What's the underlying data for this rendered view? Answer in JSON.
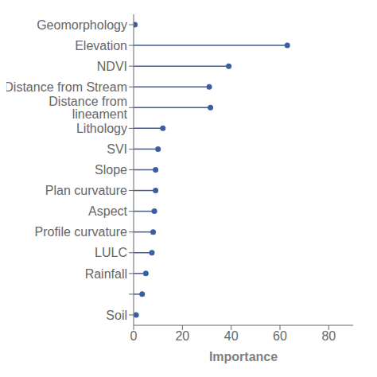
{
  "chart_data": {
    "type": "lollipop",
    "orientation": "horizontal",
    "categories": [
      "Geomorphology",
      "Elevation",
      "NDVI",
      "Distance from Stream",
      "Distance from lineament",
      "Lithology",
      "SVI",
      "Slope",
      "Plan curvature",
      "Aspect",
      "Profile curvature",
      "LULC",
      "Rainfall",
      null,
      "Soil"
    ],
    "values": [
      0.5,
      63.0,
      39.0,
      31.0,
      31.5,
      12.0,
      10.0,
      9.0,
      9.0,
      8.5,
      8.0,
      7.5,
      5.0,
      3.5,
      1.0
    ],
    "color": "#3a5fa0",
    "marker": "circle",
    "xlabel": "Importance",
    "xlim": [
      0,
      90
    ],
    "xticks": [
      0,
      20,
      40,
      60,
      80
    ],
    "grid": false
  }
}
